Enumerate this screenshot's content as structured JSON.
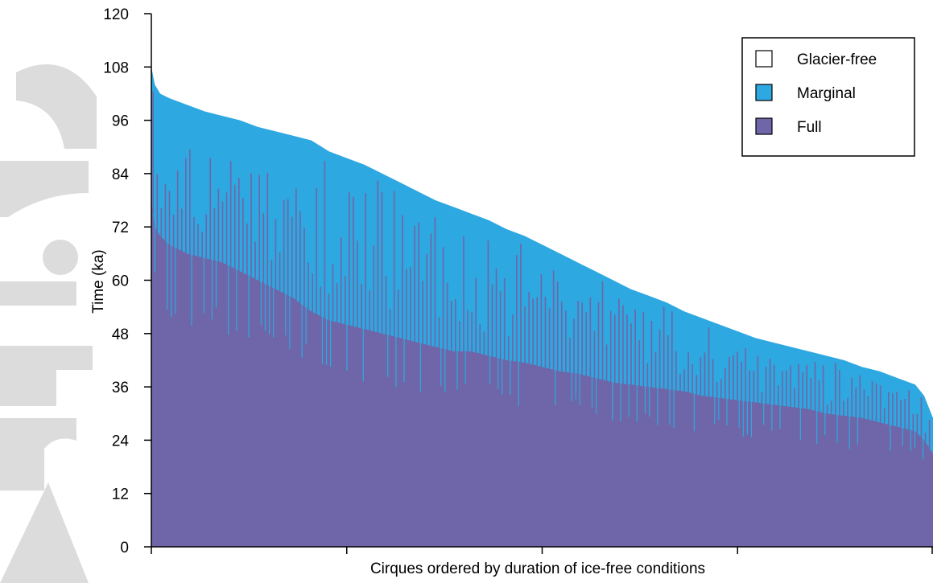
{
  "watermark": {
    "text": "Article",
    "color": "#d9d9d9"
  },
  "colors": {
    "full": "#6e66a8",
    "marginal": "#2ea8e0",
    "glacier_free": "#ffffff",
    "axis": "#000000"
  },
  "chart_data": {
    "type": "area",
    "title": "",
    "xlabel": "Cirques ordered by duration of ice-free conditions",
    "ylabel": "Time (ka)",
    "ylim": [
      0,
      120
    ],
    "yticks": [
      0,
      12,
      24,
      36,
      48,
      60,
      72,
      84,
      96,
      108,
      120
    ],
    "x_range": [
      0,
      440
    ],
    "grid": false,
    "legend_position": "top-right",
    "x": [
      0,
      2,
      5,
      10,
      20,
      30,
      40,
      50,
      60,
      70,
      80,
      90,
      100,
      110,
      120,
      130,
      140,
      150,
      160,
      170,
      180,
      190,
      200,
      210,
      220,
      230,
      240,
      250,
      260,
      270,
      280,
      290,
      300,
      310,
      320,
      330,
      340,
      350,
      360,
      370,
      380,
      390,
      400,
      410,
      420,
      430,
      435,
      440
    ],
    "series": [
      {
        "name": "Glacier-free",
        "color": "#ffffff",
        "values": [
          120,
          120,
          120,
          120,
          120,
          120,
          120,
          120,
          120,
          120,
          120,
          120,
          120,
          120,
          120,
          120,
          120,
          120,
          120,
          120,
          120,
          120,
          120,
          120,
          120,
          120,
          120,
          120,
          120,
          120,
          120,
          120,
          120,
          120,
          120,
          120,
          120,
          120,
          120,
          120,
          120,
          120,
          120,
          120,
          120,
          120,
          120,
          120
        ]
      },
      {
        "name": "Marginal",
        "color": "#2ea8e0",
        "values": [
          108,
          104,
          102,
          101,
          99.5,
          98,
          97,
          96,
          94.5,
          93.5,
          92.5,
          91.5,
          89,
          87.5,
          86,
          84,
          82,
          80,
          78,
          76.5,
          75,
          73.5,
          71.5,
          70,
          68,
          66,
          64,
          62,
          60,
          58,
          56.5,
          55,
          53,
          51.5,
          50,
          48.5,
          47,
          46,
          45,
          44,
          43,
          42,
          40.5,
          39.5,
          38,
          36.5,
          34,
          29
        ]
      },
      {
        "name": "Full",
        "color": "#6e66a8",
        "values": [
          78,
          72,
          70,
          68,
          66,
          65,
          64,
          62,
          60,
          58,
          56,
          53,
          51,
          50,
          49,
          48,
          47,
          46,
          45,
          44,
          44,
          43,
          42,
          41.5,
          40.5,
          39.5,
          39,
          38,
          37,
          36.5,
          36,
          35.5,
          35,
          34,
          33.5,
          33,
          32.5,
          32,
          31.5,
          31,
          30,
          29.5,
          29,
          28,
          27,
          26,
          24,
          21
        ]
      }
    ]
  }
}
